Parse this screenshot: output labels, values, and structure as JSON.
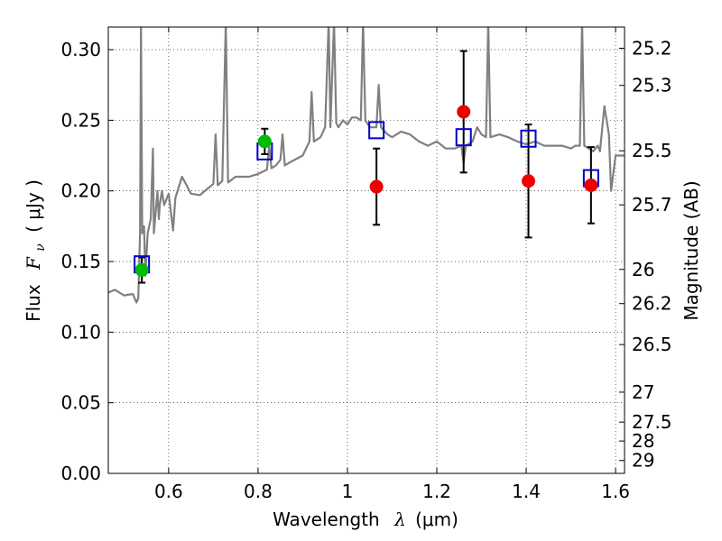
{
  "chart_data": {
    "type": "scatter",
    "xlabel": "Wavelength",
    "xlabel_symbol": "λ",
    "xlabel_unit": "(μm)",
    "ylabel": "Flux",
    "ylabel_symbol": "F",
    "ylabel_subscript": "ν",
    "ylabel_unit": "( μJy )",
    "y2label": "Magnitude (AB)",
    "xlim": [
      0.465,
      1.62
    ],
    "ylim": [
      0.0,
      0.316
    ],
    "grid": true,
    "x_ticks": [
      0.6,
      0.8,
      1.0,
      1.2,
      1.4,
      1.6
    ],
    "x_tick_labels": [
      "0.6",
      "0.8",
      "1",
      "1.2",
      "1.4",
      "1.6"
    ],
    "y_ticks": [
      0.0,
      0.05,
      0.1,
      0.15,
      0.2,
      0.25,
      0.3
    ],
    "y_tick_labels": [
      "0.00",
      "0.05",
      "0.10",
      "0.15",
      "0.20",
      "0.25",
      "0.30"
    ],
    "mag_ticks": [
      {
        "label": "25.2",
        "flux": 0.301
      },
      {
        "label": "25.3",
        "flux": 0.2747
      },
      {
        "label": "25.5",
        "flux": 0.2284
      },
      {
        "label": "25.7",
        "flux": 0.1901
      },
      {
        "label": "26",
        "flux": 0.1444
      },
      {
        "label": "26.2",
        "flux": 0.1202
      },
      {
        "label": "26.5",
        "flux": 0.0912
      },
      {
        "label": "27",
        "flux": 0.0575
      },
      {
        "label": "27.5",
        "flux": 0.0363
      },
      {
        "label": "28",
        "flux": 0.0229
      },
      {
        "label": "29",
        "flux": 0.0091
      }
    ],
    "series": [
      {
        "name": "model spectrum",
        "kind": "line",
        "color": "#808080",
        "points": [
          [
            0.465,
            0.128
          ],
          [
            0.48,
            0.13
          ],
          [
            0.5,
            0.126
          ],
          [
            0.52,
            0.127
          ],
          [
            0.528,
            0.121
          ],
          [
            0.532,
            0.124
          ],
          [
            0.536,
            0.17
          ],
          [
            0.538,
            0.32
          ],
          [
            0.541,
            0.17
          ],
          [
            0.545,
            0.175
          ],
          [
            0.548,
            0.14
          ],
          [
            0.553,
            0.17
          ],
          [
            0.56,
            0.18
          ],
          [
            0.565,
            0.23
          ],
          [
            0.567,
            0.17
          ],
          [
            0.575,
            0.2
          ],
          [
            0.578,
            0.18
          ],
          [
            0.58,
            0.19
          ],
          [
            0.585,
            0.2
          ],
          [
            0.59,
            0.19
          ],
          [
            0.6,
            0.198
          ],
          [
            0.61,
            0.172
          ],
          [
            0.615,
            0.195
          ],
          [
            0.63,
            0.21
          ],
          [
            0.65,
            0.198
          ],
          [
            0.67,
            0.197
          ],
          [
            0.7,
            0.205
          ],
          [
            0.705,
            0.24
          ],
          [
            0.71,
            0.204
          ],
          [
            0.72,
            0.207
          ],
          [
            0.728,
            0.32
          ],
          [
            0.733,
            0.206
          ],
          [
            0.75,
            0.21
          ],
          [
            0.78,
            0.21
          ],
          [
            0.8,
            0.212
          ],
          [
            0.82,
            0.215
          ],
          [
            0.825,
            0.232
          ],
          [
            0.83,
            0.216
          ],
          [
            0.84,
            0.218
          ],
          [
            0.85,
            0.222
          ],
          [
            0.855,
            0.24
          ],
          [
            0.86,
            0.218
          ],
          [
            0.87,
            0.22
          ],
          [
            0.9,
            0.225
          ],
          [
            0.915,
            0.235
          ],
          [
            0.92,
            0.27
          ],
          [
            0.925,
            0.235
          ],
          [
            0.94,
            0.238
          ],
          [
            0.95,
            0.245
          ],
          [
            0.958,
            0.32
          ],
          [
            0.962,
            0.245
          ],
          [
            0.97,
            0.32
          ],
          [
            0.975,
            0.248
          ],
          [
            0.98,
            0.245
          ],
          [
            0.99,
            0.25
          ],
          [
            1.0,
            0.247
          ],
          [
            1.01,
            0.252
          ],
          [
            1.02,
            0.252
          ],
          [
            1.03,
            0.25
          ],
          [
            1.035,
            0.32
          ],
          [
            1.04,
            0.25
          ],
          [
            1.05,
            0.245
          ],
          [
            1.065,
            0.245
          ],
          [
            1.07,
            0.275
          ],
          [
            1.075,
            0.245
          ],
          [
            1.09,
            0.24
          ],
          [
            1.1,
            0.238
          ],
          [
            1.12,
            0.242
          ],
          [
            1.14,
            0.24
          ],
          [
            1.16,
            0.235
          ],
          [
            1.18,
            0.232
          ],
          [
            1.2,
            0.235
          ],
          [
            1.22,
            0.23
          ],
          [
            1.24,
            0.23
          ],
          [
            1.255,
            0.232
          ],
          [
            1.26,
            0.22
          ],
          [
            1.265,
            0.232
          ],
          [
            1.28,
            0.235
          ],
          [
            1.29,
            0.245
          ],
          [
            1.3,
            0.24
          ],
          [
            1.31,
            0.238
          ],
          [
            1.315,
            0.32
          ],
          [
            1.32,
            0.238
          ],
          [
            1.34,
            0.24
          ],
          [
            1.36,
            0.238
          ],
          [
            1.38,
            0.235
          ],
          [
            1.4,
            0.233
          ],
          [
            1.42,
            0.235
          ],
          [
            1.44,
            0.232
          ],
          [
            1.46,
            0.232
          ],
          [
            1.48,
            0.232
          ],
          [
            1.5,
            0.23
          ],
          [
            1.51,
            0.232
          ],
          [
            1.52,
            0.232
          ],
          [
            1.525,
            0.32
          ],
          [
            1.53,
            0.232
          ],
          [
            1.54,
            0.23
          ],
          [
            1.55,
            0.228
          ],
          [
            1.56,
            0.232
          ],
          [
            1.565,
            0.228
          ],
          [
            1.575,
            0.26
          ],
          [
            1.585,
            0.24
          ],
          [
            1.59,
            0.2
          ],
          [
            1.6,
            0.225
          ],
          [
            1.62,
            0.225
          ]
        ]
      },
      {
        "name": "model photometry",
        "kind": "open-square",
        "color": "#0000cc",
        "x": [
          0.54,
          0.815,
          1.065,
          1.26,
          1.405,
          1.545
        ],
        "y": [
          0.148,
          0.228,
          0.243,
          0.238,
          0.237,
          0.209
        ]
      },
      {
        "name": "green photometry",
        "kind": "filled-circle",
        "color": "#00bb00",
        "x": [
          0.54,
          0.815
        ],
        "y": [
          0.144,
          0.235
        ],
        "err": [
          0.009,
          0.009
        ]
      },
      {
        "name": "red photometry",
        "kind": "filled-circle",
        "color": "#ee0000",
        "x": [
          1.065,
          1.26,
          1.405,
          1.545
        ],
        "y": [
          0.203,
          0.256,
          0.207,
          0.204
        ],
        "err": [
          0.027,
          0.043,
          0.04,
          0.027
        ]
      }
    ]
  }
}
